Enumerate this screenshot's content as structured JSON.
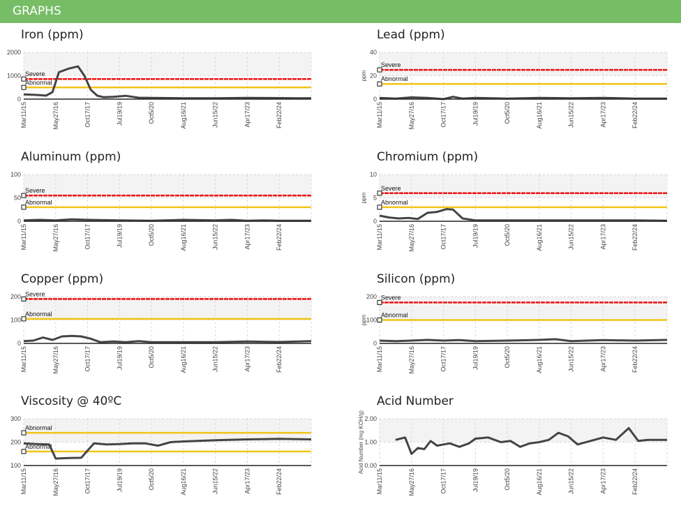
{
  "header": {
    "title": "GRAPHS"
  },
  "colors": {
    "header_bg": "#77bd66",
    "severe": "#ee1111",
    "abnormal": "#f2c318",
    "series": "#444444",
    "band": "#f3f3f3"
  },
  "x_ticks": [
    "Mar11/15",
    "May27/16",
    "Oct17/17",
    "Jul19/19",
    "Oct5/20",
    "Aug16/21",
    "Jun15/22",
    "Apr17/23",
    "Feb22/24"
  ],
  "chart_data": [
    {
      "type": "line",
      "title": "Iron (ppm)",
      "ylabel": "",
      "ylim": [
        0,
        2000
      ],
      "yticks": [
        "0",
        "1000",
        "2000"
      ],
      "levels": [
        {
          "label": "Severe",
          "value": 860,
          "kind": "severe"
        },
        {
          "label": "Abnormal",
          "value": 500,
          "kind": "abnormal"
        }
      ],
      "series": [
        {
          "x": [
            0,
            0.4,
            0.7,
            0.9,
            1.1,
            1.4,
            1.7,
            1.9,
            2.1,
            2.3,
            2.5,
            2.8,
            3.2,
            3.6,
            4,
            5,
            6,
            7,
            8,
            8.5,
            9
          ],
          "values": [
            200,
            180,
            150,
            300,
            1150,
            1300,
            1400,
            1000,
            400,
            150,
            80,
            100,
            140,
            60,
            50,
            40,
            40,
            50,
            45,
            40,
            40
          ]
        }
      ]
    },
    {
      "type": "line",
      "title": "Lead (ppm)",
      "ylabel": "ppm",
      "ylim": [
        0,
        40
      ],
      "yticks": [
        "0",
        "20",
        "40"
      ],
      "levels": [
        {
          "label": "Severe",
          "value": 25,
          "kind": "severe"
        },
        {
          "label": "Abnormal",
          "value": 13,
          "kind": "abnormal"
        }
      ],
      "series": [
        {
          "x": [
            0,
            0.5,
            1,
            1.5,
            2,
            2.3,
            2.6,
            3,
            4,
            5,
            6,
            7,
            8,
            9
          ],
          "values": [
            1,
            0.5,
            1.5,
            1,
            0,
            2,
            0.5,
            1,
            0.5,
            1,
            0.8,
            1,
            0.5,
            0.5
          ]
        }
      ]
    },
    {
      "type": "line",
      "title": "Aluminum (ppm)",
      "ylabel": "",
      "ylim": [
        0,
        100
      ],
      "yticks": [
        "0",
        "50",
        "100"
      ],
      "levels": [
        {
          "label": "Severe",
          "value": 55,
          "kind": "severe"
        },
        {
          "label": "Abnormal",
          "value": 30,
          "kind": "abnormal"
        }
      ],
      "series": [
        {
          "x": [
            0,
            0.5,
            1,
            1.5,
            2,
            3,
            4,
            5,
            6,
            6.5,
            7,
            7.5,
            8,
            9
          ],
          "values": [
            2,
            3,
            2,
            4,
            3,
            2,
            1,
            3,
            2,
            3,
            1,
            2,
            1,
            1
          ]
        }
      ]
    },
    {
      "type": "line",
      "title": "Chromium (ppm)",
      "ylabel": "ppm",
      "ylim": [
        0,
        10
      ],
      "yticks": [
        "0",
        "5",
        "10"
      ],
      "levels": [
        {
          "label": "Severe",
          "value": 6,
          "kind": "severe"
        },
        {
          "label": "Abnormal",
          "value": 3,
          "kind": "abnormal"
        }
      ],
      "series": [
        {
          "x": [
            0,
            0.3,
            0.6,
            0.9,
            1.2,
            1.5,
            1.8,
            2.1,
            2.3,
            2.6,
            3,
            4,
            5,
            6,
            7,
            8,
            9
          ],
          "values": [
            1.2,
            0.8,
            0.6,
            0.7,
            0.5,
            1.8,
            2,
            2.6,
            2.5,
            0.6,
            0.2,
            0.2,
            0.2,
            0.2,
            0.2,
            0.2,
            0.1
          ]
        }
      ]
    },
    {
      "type": "line",
      "title": "Copper (ppm)",
      "ylabel": "",
      "ylim": [
        0,
        200
      ],
      "yticks": [
        "0",
        "100",
        "200"
      ],
      "levels": [
        {
          "label": "Severe",
          "value": 190,
          "kind": "severe"
        },
        {
          "label": "Abnormal",
          "value": 105,
          "kind": "abnormal"
        }
      ],
      "series": [
        {
          "x": [
            0,
            0.3,
            0.6,
            0.9,
            1.2,
            1.5,
            1.8,
            2.1,
            2.4,
            2.8,
            3.2,
            3.6,
            4,
            5,
            6,
            7,
            8,
            9
          ],
          "values": [
            10,
            12,
            25,
            15,
            30,
            32,
            30,
            20,
            5,
            8,
            5,
            10,
            5,
            5,
            5,
            8,
            6,
            10
          ]
        }
      ]
    },
    {
      "type": "line",
      "title": "Silicon (ppm)",
      "ylabel": "ppm",
      "ylim": [
        0,
        200
      ],
      "yticks": [
        "0",
        "100",
        "200"
      ],
      "levels": [
        {
          "label": "Severe",
          "value": 175,
          "kind": "severe"
        },
        {
          "label": "Abnormal",
          "value": 100,
          "kind": "abnormal"
        }
      ],
      "series": [
        {
          "x": [
            0,
            0.5,
            1,
            1.5,
            2,
            2.5,
            3,
            4,
            5,
            5.5,
            6,
            6.5,
            7,
            8,
            9
          ],
          "values": [
            12,
            10,
            12,
            15,
            12,
            14,
            10,
            12,
            15,
            18,
            10,
            12,
            14,
            12,
            15
          ]
        }
      ]
    },
    {
      "type": "line",
      "title": "Viscosity @ 40ºC",
      "ylabel": "",
      "ylim": [
        100,
        300
      ],
      "yticks": [
        "100",
        "200",
        "300"
      ],
      "levels": [
        {
          "label": "Abnormal",
          "value": 240,
          "kind": "abnormal"
        },
        {
          "label": "Abnormal",
          "value": 160,
          "kind": "abnormal"
        }
      ],
      "series": [
        {
          "x": [
            0,
            0.4,
            0.8,
            1,
            1.4,
            1.8,
            2.2,
            2.6,
            3,
            3.4,
            3.8,
            4.2,
            4.6,
            5,
            6,
            7,
            8,
            9
          ],
          "values": [
            195,
            192,
            190,
            130,
            132,
            133,
            195,
            190,
            192,
            195,
            195,
            185,
            200,
            203,
            208,
            212,
            214,
            212
          ]
        }
      ]
    },
    {
      "type": "line",
      "title": "Acid Number",
      "ylabel": "Acid Number (mg KOH/g)",
      "ylim": [
        0,
        2
      ],
      "yticks": [
        "0.00",
        "1.00",
        "2.00"
      ],
      "levels": [],
      "series": [
        {
          "x": [
            0.5,
            0.8,
            1,
            1.2,
            1.4,
            1.6,
            1.8,
            2,
            2.2,
            2.5,
            2.8,
            3,
            3.4,
            3.8,
            4.1,
            4.4,
            4.7,
            5,
            5.3,
            5.6,
            5.9,
            6.2,
            6.6,
            7,
            7.4,
            7.8,
            8.1,
            8.4,
            8.7,
            9
          ],
          "values": [
            1.1,
            1.2,
            0.5,
            0.75,
            0.7,
            1.05,
            0.85,
            0.9,
            0.95,
            0.8,
            0.95,
            1.15,
            1.2,
            1.0,
            1.05,
            0.8,
            0.95,
            1.0,
            1.1,
            1.4,
            1.25,
            0.9,
            1.05,
            1.2,
            1.1,
            1.6,
            1.05,
            1.1,
            1.1,
            1.1
          ]
        }
      ]
    }
  ]
}
